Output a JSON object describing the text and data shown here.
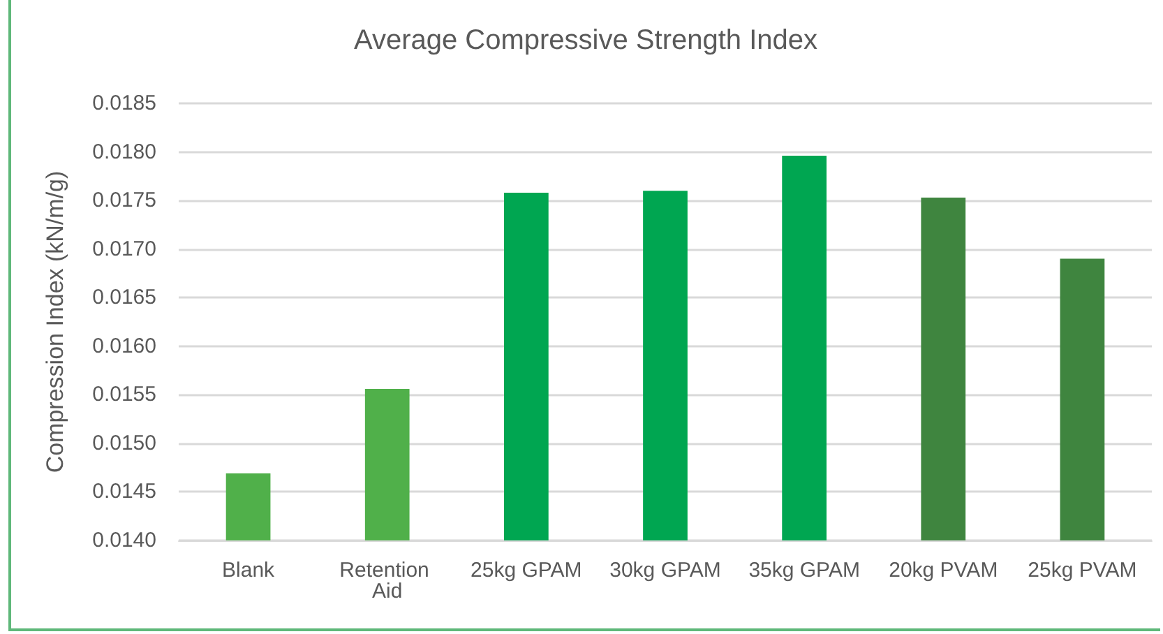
{
  "chart_data": {
    "type": "bar",
    "title": "Average Compressive Strength Index",
    "ylabel": "Compression Index (kN/m/g)",
    "categories": [
      "Blank",
      "Retention Aid",
      "25kg GPAM",
      "30kg GPAM",
      "35kg GPAM",
      "20kg PVAM",
      "25kg PVAM"
    ],
    "values": [
      0.01469,
      0.01556,
      0.01758,
      0.0176,
      0.01796,
      0.01753,
      0.0169
    ],
    "colors": [
      "#50b04a",
      "#50b04a",
      "#00a651",
      "#00a651",
      "#00a651",
      "#3f853f",
      "#3f853f"
    ],
    "ylim": [
      0.014,
      0.0185
    ],
    "yticks": [
      {
        "value": 0.014,
        "label": "0.0140"
      },
      0.0145,
      {
        "value": 0.015,
        "label": "0.0150"
      },
      0.0155,
      {
        "value": 0.016,
        "label": "0.0160"
      },
      0.0165,
      {
        "value": 0.017,
        "label": "0.0170"
      },
      0.0175,
      {
        "value": 0.018,
        "label": "0.0180"
      },
      0.0185
    ],
    "grid": true
  }
}
